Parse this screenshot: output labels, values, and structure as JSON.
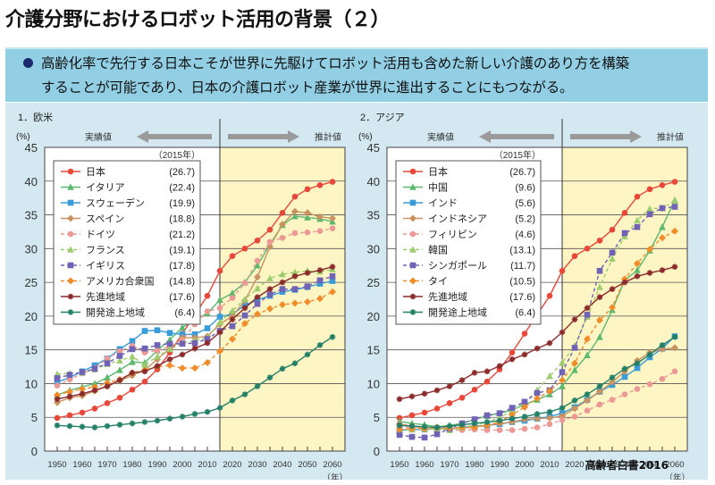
{
  "header": {
    "title": "介護分野におけるロボット活用の背景（２）"
  },
  "callout": {
    "line1": "高齢化率で先行する日本こそが世界に先駆けてロボット活用も含めた新しい介護のあり方を構築",
    "line2": "することが可能であり、日本の介護ロボット産業が世界に進出することにもつながる。"
  },
  "source": "高齢者白書2016",
  "colors": {
    "panel_bg": "#d3e8f0",
    "projection_bg": "#fdf5c4",
    "callout_bg": "#92cfe4",
    "arrow": "#9a9a9a"
  },
  "chart_data": [
    {
      "type": "line",
      "title": "1．欧米",
      "ylabel": "(%)",
      "xlabel": "（年）",
      "ylim": [
        0,
        45
      ],
      "yticks": [
        "0",
        "5",
        "10",
        "15",
        "20",
        "25",
        "30",
        "35",
        "40",
        "45"
      ],
      "xticks": [
        "1950",
        "1960",
        "1970",
        "1980",
        "1990",
        "2000",
        "2010",
        "2020",
        "2030",
        "2040",
        "2050",
        "2060"
      ],
      "x": [
        1950,
        1955,
        1960,
        1965,
        1970,
        1975,
        1980,
        1985,
        1990,
        1995,
        2000,
        2005,
        2010,
        2015,
        2020,
        2025,
        2030,
        2035,
        2040,
        2045,
        2050,
        2055,
        2060
      ],
      "grid": true,
      "actual_label": "実績値",
      "projected_label": "推計値",
      "projection_start": 2015,
      "legend_title": "（2015年）",
      "legend_position": "top-left",
      "series": [
        {
          "name": "日本",
          "value_2015": "(26.7)",
          "color": "#e8483a",
          "marker": "circle",
          "dashed": false,
          "values": [
            4.9,
            5.3,
            5.7,
            6.3,
            7.1,
            7.9,
            9.1,
            10.3,
            12.1,
            14.6,
            17.4,
            20.2,
            23.0,
            26.7,
            28.9,
            30.0,
            31.2,
            32.8,
            35.3,
            37.7,
            38.8,
            39.4,
            39.9
          ]
        },
        {
          "name": "イタリア",
          "value_2015": "(22.4)",
          "color": "#5cb86e",
          "marker": "triangle",
          "dashed": false,
          "values": [
            8.3,
            9.0,
            9.5,
            10.0,
            10.9,
            12.0,
            13.2,
            13.1,
            14.9,
            16.5,
            18.3,
            19.5,
            20.4,
            22.4,
            23.4,
            25.0,
            27.5,
            30.6,
            33.5,
            34.8,
            34.6,
            34.4,
            34.0
          ]
        },
        {
          "name": "スウェーデン",
          "value_2015": "(19.9)",
          "color": "#3a9bd9",
          "marker": "square",
          "dashed": false,
          "values": [
            10.2,
            10.9,
            11.8,
            12.7,
            13.7,
            15.1,
            16.3,
            17.8,
            17.9,
            17.5,
            17.3,
            17.3,
            18.2,
            19.9,
            20.3,
            21.6,
            22.4,
            23.0,
            23.6,
            23.9,
            24.3,
            24.8,
            25.2
          ]
        },
        {
          "name": "スペイン",
          "value_2015": "(18.8)",
          "color": "#c99361",
          "marker": "diamond",
          "dashed": false,
          "values": [
            7.2,
            7.9,
            8.2,
            8.9,
            9.6,
            10.4,
            11.2,
            12.0,
            13.6,
            15.2,
            16.8,
            16.8,
            17.0,
            18.8,
            20.0,
            22.3,
            25.8,
            30.3,
            33.6,
            35.5,
            35.3,
            34.7,
            34.5
          ]
        },
        {
          "name": "ドイツ",
          "value_2015": "(21.2)",
          "color": "#ec9996",
          "marker": "circle",
          "dashed": true,
          "values": [
            9.7,
            10.6,
            11.5,
            12.3,
            13.7,
            14.8,
            15.6,
            14.6,
            14.9,
            15.5,
            16.4,
            18.8,
            20.7,
            21.2,
            22.7,
            24.9,
            28.2,
            31.0,
            31.6,
            32.3,
            32.4,
            32.6,
            33.0
          ]
        },
        {
          "name": "フランス",
          "value_2015": "(19.1)",
          "color": "#9dcc6e",
          "marker": "triangle",
          "dashed": true,
          "values": [
            11.4,
            11.5,
            11.6,
            12.1,
            12.9,
            13.4,
            14.0,
            12.8,
            14.0,
            15.1,
            16.0,
            16.4,
            16.8,
            19.1,
            20.8,
            22.5,
            24.1,
            25.6,
            26.2,
            26.5,
            26.7,
            26.6,
            26.9
          ]
        },
        {
          "name": "イギリス",
          "value_2015": "(17.8)",
          "color": "#7062b5",
          "marker": "square",
          "dashed": true,
          "values": [
            10.8,
            11.3,
            11.7,
            12.2,
            13.0,
            14.1,
            15.1,
            15.2,
            15.7,
            15.9,
            15.9,
            16.0,
            16.6,
            17.8,
            18.5,
            20.1,
            21.8,
            23.2,
            24.0,
            24.0,
            24.4,
            25.3,
            25.9
          ]
        },
        {
          "name": "アメリカ合衆国",
          "value_2015": "(14.8)",
          "color": "#f08c2a",
          "marker": "diamond",
          "dashed": true,
          "values": [
            8.3,
            8.8,
            9.2,
            9.5,
            10.1,
            10.6,
            11.6,
            12.0,
            12.5,
            12.7,
            12.3,
            12.3,
            13.1,
            14.8,
            16.6,
            18.9,
            20.3,
            21.1,
            21.7,
            21.9,
            22.1,
            22.6,
            23.6
          ]
        },
        {
          "name": "先進地域",
          "value_2015": "(17.6)",
          "color": "#8b2c2c",
          "marker": "star",
          "dashed": false,
          "values": [
            7.7,
            8.1,
            8.5,
            9.0,
            9.6,
            10.5,
            11.6,
            11.8,
            12.6,
            13.6,
            14.3,
            15.2,
            16.0,
            17.6,
            19.5,
            21.2,
            22.8,
            24.0,
            25.0,
            25.9,
            26.4,
            26.8,
            27.3
          ]
        },
        {
          "name": "開発途上地域",
          "value_2015": "(6.4)",
          "color": "#237f66",
          "marker": "star",
          "dashed": false,
          "values": [
            3.8,
            3.7,
            3.6,
            3.5,
            3.7,
            3.9,
            4.1,
            4.3,
            4.5,
            4.8,
            5.1,
            5.5,
            5.8,
            6.4,
            7.5,
            8.4,
            9.6,
            10.9,
            12.2,
            13.0,
            14.3,
            15.7,
            16.9
          ]
        }
      ]
    },
    {
      "type": "line",
      "title": "2．アジア",
      "ylabel": "(%)",
      "xlabel": "（年）",
      "ylim": [
        0,
        45
      ],
      "yticks": [
        "0",
        "5",
        "10",
        "15",
        "20",
        "25",
        "30",
        "35",
        "40",
        "45"
      ],
      "xticks": [
        "1950",
        "1960",
        "1970",
        "1980",
        "1990",
        "2000",
        "2010",
        "2020",
        "2030",
        "2040",
        "2050",
        "2060"
      ],
      "x": [
        1950,
        1955,
        1960,
        1965,
        1970,
        1975,
        1980,
        1985,
        1990,
        1995,
        2000,
        2005,
        2010,
        2015,
        2020,
        2025,
        2030,
        2035,
        2040,
        2045,
        2050,
        2055,
        2060
      ],
      "grid": true,
      "actual_label": "実績値",
      "projected_label": "推計値",
      "projection_start": 2015,
      "legend_title": "（2015年）",
      "legend_position": "top-left",
      "series": [
        {
          "name": "日本",
          "value_2015": "(26.7)",
          "color": "#e8483a",
          "marker": "circle",
          "dashed": false,
          "values": [
            4.9,
            5.3,
            5.7,
            6.3,
            7.1,
            7.9,
            9.1,
            10.3,
            12.1,
            14.6,
            17.4,
            20.2,
            23.0,
            26.7,
            28.9,
            30.0,
            31.2,
            32.8,
            35.3,
            37.7,
            38.8,
            39.4,
            39.9
          ]
        },
        {
          "name": "中国",
          "value_2015": "(9.6)",
          "color": "#5cb86e",
          "marker": "triangle",
          "dashed": false,
          "values": [
            4.4,
            4.1,
            3.9,
            3.6,
            3.8,
            4.1,
            4.7,
            5.2,
            5.6,
            6.1,
            6.9,
            7.6,
            8.4,
            9.6,
            12.0,
            14.2,
            16.9,
            20.9,
            25.3,
            26.8,
            29.7,
            33.2,
            37.2
          ]
        },
        {
          "name": "インド",
          "value_2015": "(5.6)",
          "color": "#3a9bd9",
          "marker": "square",
          "dashed": false,
          "values": [
            3.1,
            3.2,
            3.2,
            3.3,
            3.3,
            3.5,
            3.7,
            3.8,
            4.0,
            4.3,
            4.5,
            4.8,
            5.1,
            5.6,
            6.5,
            7.6,
            8.8,
            9.8,
            11.0,
            12.3,
            13.9,
            15.2,
            17.0
          ]
        },
        {
          "name": "インドネシア",
          "value_2015": "(5.2)",
          "color": "#c99361",
          "marker": "diamond",
          "dashed": false,
          "values": [
            4.0,
            3.7,
            3.3,
            3.3,
            3.3,
            3.4,
            3.6,
            3.8,
            4.1,
            4.3,
            4.7,
            4.8,
            4.9,
            5.2,
            6.3,
            7.5,
            8.8,
            10.2,
            11.8,
            13.4,
            14.6,
            15.1,
            15.3
          ]
        },
        {
          "name": "フィリピン",
          "value_2015": "(4.6)",
          "color": "#ec9996",
          "marker": "circle",
          "dashed": true,
          "values": [
            3.6,
            3.5,
            3.4,
            3.3,
            3.1,
            3.1,
            3.2,
            3.1,
            3.1,
            3.1,
            3.3,
            3.5,
            4.0,
            4.6,
            5.1,
            6.0,
            6.9,
            7.6,
            8.4,
            9.2,
            9.9,
            10.7,
            11.8
          ]
        },
        {
          "name": "韓国",
          "value_2015": "(13.1)",
          "color": "#9dcc6e",
          "marker": "triangle",
          "dashed": true,
          "values": [
            3.0,
            3.2,
            3.3,
            3.3,
            3.1,
            3.5,
            3.8,
            4.3,
            5.0,
            5.9,
            7.2,
            9.0,
            11.1,
            13.1,
            15.6,
            19.9,
            24.3,
            28.5,
            31.8,
            34.2,
            35.9,
            36.0,
            37.1
          ]
        },
        {
          "name": "シンガポール",
          "value_2015": "(11.7)",
          "color": "#7062b5",
          "marker": "square",
          "dashed": true,
          "values": [
            2.4,
            2.1,
            2.0,
            2.5,
            3.3,
            4.1,
            4.7,
            5.3,
            5.6,
            6.4,
            7.3,
            8.6,
            9.0,
            11.7,
            15.3,
            20.2,
            26.7,
            29.4,
            32.3,
            33.2,
            35.1,
            36.0,
            36.2
          ]
        },
        {
          "name": "タイ",
          "value_2015": "(10.5)",
          "color": "#f08c2a",
          "marker": "diamond",
          "dashed": true,
          "values": [
            3.2,
            3.3,
            3.3,
            3.5,
            3.4,
            3.5,
            3.5,
            3.8,
            4.3,
            5.4,
            6.5,
            7.8,
            8.9,
            10.5,
            13.0,
            16.6,
            19.4,
            21.3,
            25.5,
            27.8,
            29.9,
            31.6,
            32.6
          ]
        },
        {
          "name": "先進地域",
          "value_2015": "(17.6)",
          "color": "#8b2c2c",
          "marker": "star",
          "dashed": false,
          "values": [
            7.7,
            8.1,
            8.5,
            9.0,
            9.6,
            10.5,
            11.6,
            11.8,
            12.6,
            13.6,
            14.3,
            15.2,
            16.0,
            17.6,
            19.5,
            21.2,
            22.8,
            24.0,
            25.0,
            25.9,
            26.4,
            26.8,
            27.3
          ]
        },
        {
          "name": "開発途上地域",
          "value_2015": "(6.4)",
          "color": "#237f66",
          "marker": "star",
          "dashed": false,
          "values": [
            3.8,
            3.7,
            3.6,
            3.5,
            3.7,
            3.9,
            4.1,
            4.3,
            4.5,
            4.8,
            5.1,
            5.5,
            5.8,
            6.4,
            7.5,
            8.4,
            9.6,
            10.9,
            12.2,
            13.0,
            14.3,
            15.7,
            16.9
          ]
        }
      ]
    }
  ]
}
